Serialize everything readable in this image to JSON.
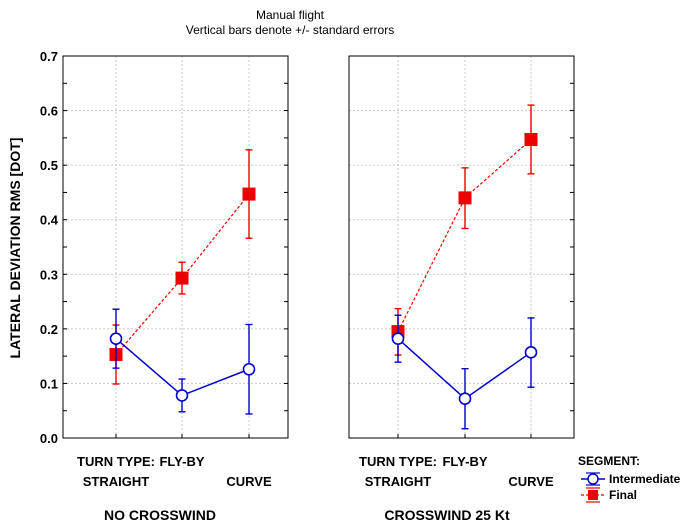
{
  "chart_data": {
    "type": "line",
    "title": "Manual flight",
    "subtitle": "Vertical bars denote +/- standard errors",
    "ylabel": "LATERAL DEVIATION RMS [DOT]",
    "ylim": [
      0,
      0.7
    ],
    "yticks": [
      "0.0",
      "0.1",
      "0.2",
      "0.3",
      "0.4",
      "0.5",
      "0.6",
      "0.7"
    ],
    "grid": true,
    "x_axis_title": "TURN TYPE:",
    "categories": [
      "STRAIGHT",
      "FLY-BY",
      "CURVE"
    ],
    "legend": {
      "title": "SEGMENT:",
      "position": "bottom-right",
      "items": [
        "Intermediate",
        "Final"
      ]
    },
    "panels": [
      {
        "label": "NO CROSSWIND",
        "series": [
          {
            "name": "Intermediate",
            "color": "#0000cc",
            "marker": "open-circle",
            "line": "solid",
            "values": [
              0.182,
              0.078,
              0.126
            ],
            "err_low": [
              0.128,
              0.048,
              0.044
            ],
            "err_high": [
              0.236,
              0.108,
              0.208
            ]
          },
          {
            "name": "Final",
            "color": "#ee0000",
            "marker": "filled-square",
            "line": "dotted",
            "values": [
              0.153,
              0.293,
              0.447
            ],
            "err_low": [
              0.099,
              0.264,
              0.366
            ],
            "err_high": [
              0.207,
              0.322,
              0.528
            ]
          }
        ]
      },
      {
        "label": "CROSSWIND 25 Kt",
        "series": [
          {
            "name": "Intermediate",
            "color": "#0000cc",
            "marker": "open-circle",
            "line": "solid",
            "values": [
              0.182,
              0.072,
              0.157
            ],
            "err_low": [
              0.139,
              0.017,
              0.093
            ],
            "err_high": [
              0.225,
              0.127,
              0.22
            ]
          },
          {
            "name": "Final",
            "color": "#ee0000",
            "marker": "filled-square",
            "line": "dotted",
            "values": [
              0.195,
              0.44,
              0.547
            ],
            "err_low": [
              0.152,
              0.384,
              0.484
            ],
            "err_high": [
              0.237,
              0.495,
              0.61
            ]
          }
        ]
      }
    ]
  }
}
